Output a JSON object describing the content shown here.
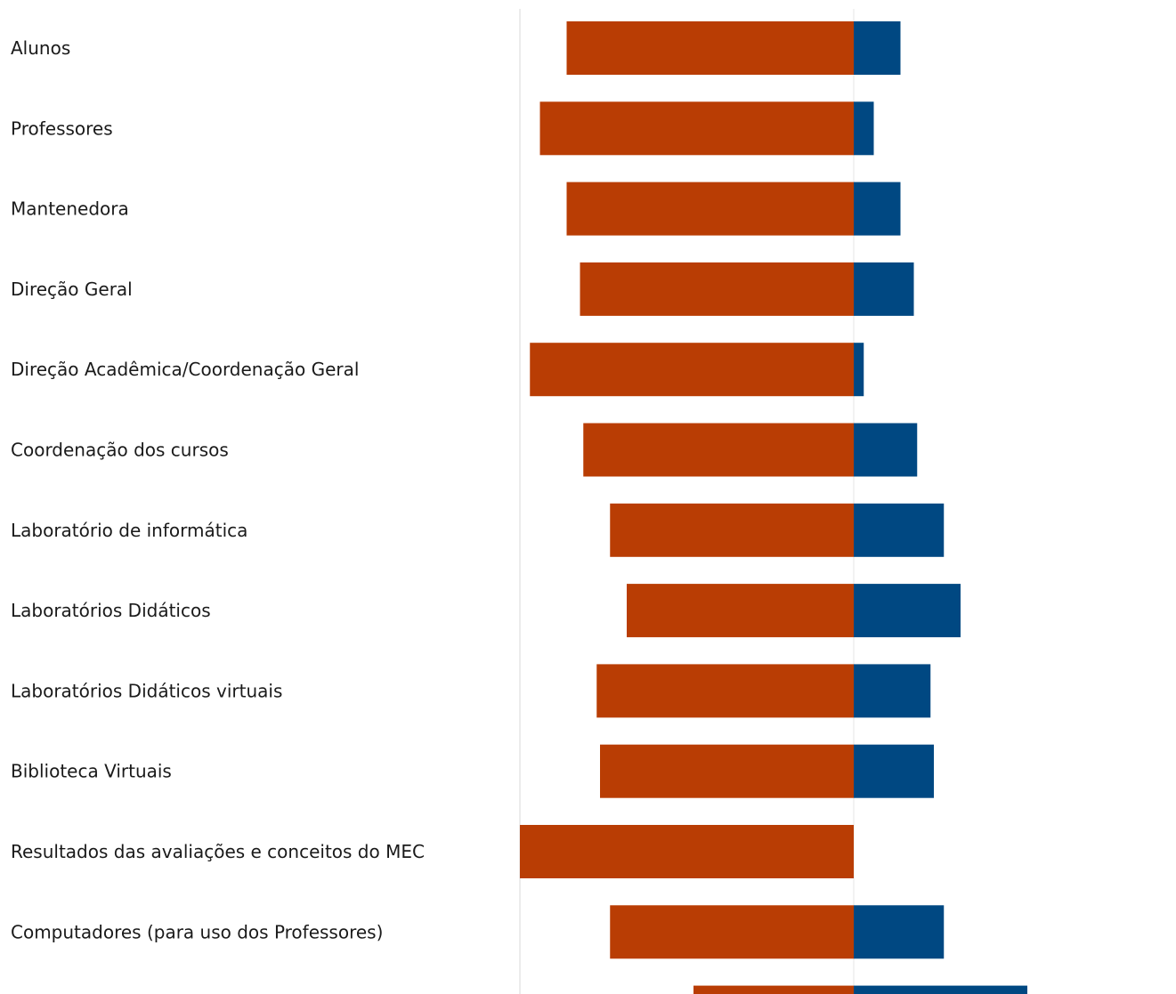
{
  "chart_data": {
    "type": "bar",
    "orientation": "horizontal",
    "stacked": "diverging",
    "categories": [
      "Alunos",
      "Professores",
      "Mantenedora",
      "Direção Geral",
      "Direção Acadêmica/Coordenação Geral",
      "Coordenação dos cursos",
      "Laboratório de informática",
      "Laboratórios Didáticos",
      "Laboratórios Didáticos virtuais",
      "Biblioteca Virtuais",
      "Resultados das avaliações e conceitos do MEC",
      "Computadores (para uso dos Professores)",
      ""
    ],
    "series": [
      {
        "color": "#b93d04",
        "values": [
          -86,
          -94,
          -86,
          -82,
          -97,
          -81,
          -73,
          -68,
          -77,
          -76,
          -100,
          -73,
          -48
        ]
      },
      {
        "color": "#004882",
        "values": [
          14,
          6,
          14,
          18,
          3,
          19,
          27,
          32,
          23,
          24,
          0,
          27,
          52
        ]
      }
    ],
    "xlim": [
      -100,
      100
    ],
    "grid": true,
    "legend": "none"
  }
}
